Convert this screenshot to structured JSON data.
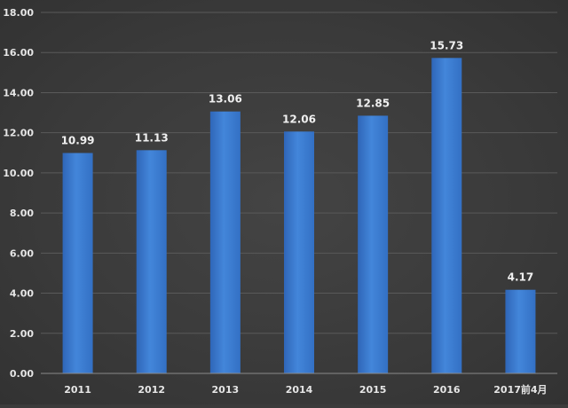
{
  "chart_data": {
    "type": "bar",
    "title": "",
    "xlabel": "",
    "ylabel": "",
    "categories": [
      "2011",
      "2012",
      "2013",
      "2014",
      "2015",
      "2016",
      "2017前4月"
    ],
    "values": [
      10.99,
      11.13,
      13.06,
      12.06,
      12.85,
      15.73,
      4.17
    ],
    "value_labels": [
      "10.99",
      "11.13",
      "13.06",
      "12.06",
      "12.85",
      "15.73",
      "4.17"
    ],
    "ylim": [
      0,
      18
    ],
    "yticks": [
      0,
      2,
      4,
      6,
      8,
      10,
      12,
      14,
      16,
      18
    ],
    "ytick_labels": [
      "0.00",
      "2.00",
      "4.00",
      "6.00",
      "8.00",
      "10.00",
      "12.00",
      "14.00",
      "16.00",
      "18.00"
    ],
    "grid": true,
    "legend": "none",
    "colors": {
      "bar": "#3d7ad0",
      "bar_highlight": "#5592e2",
      "background": "#3b3b3b",
      "grid": "#5a5a5a",
      "text": "#e6e6e6"
    }
  }
}
